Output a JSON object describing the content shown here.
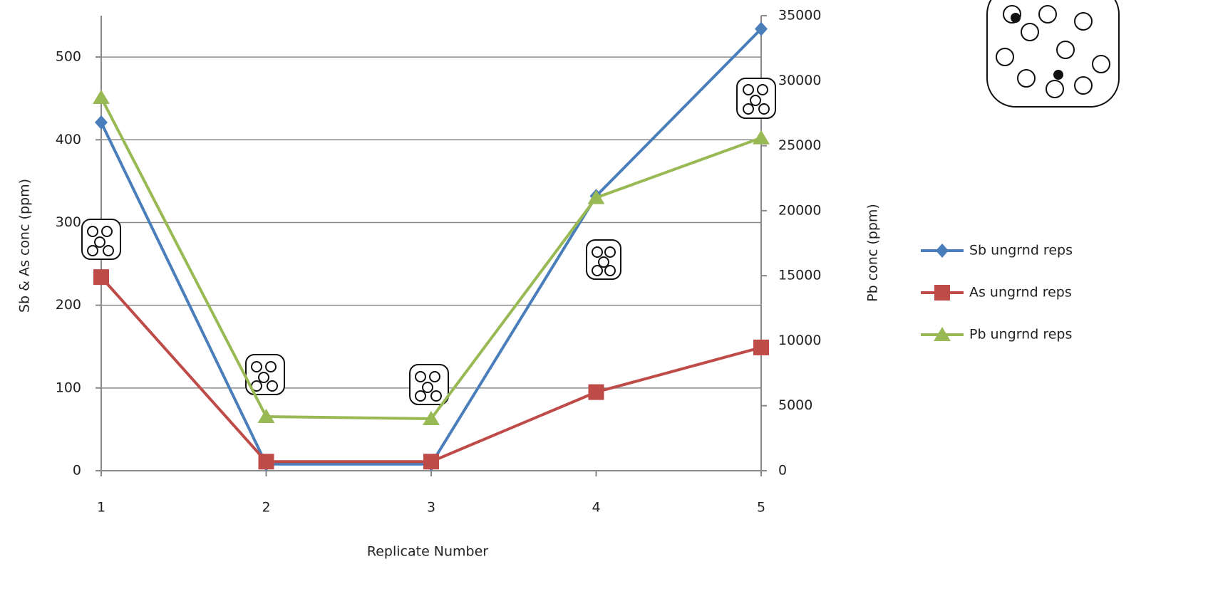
{
  "chart_data": {
    "type": "line",
    "x": [
      1,
      2,
      3,
      4,
      5
    ],
    "xlim": [
      1,
      5
    ],
    "xticks": [
      1,
      2,
      3,
      4,
      5
    ],
    "x_label": "Replicate Number",
    "y_label": "Sb & As conc (ppm)",
    "ylim": [
      0,
      550
    ],
    "yticks": [
      0,
      100,
      200,
      300,
      400,
      500
    ],
    "y2_label": "Pb conc (ppm)",
    "y2lim": [
      0,
      35000
    ],
    "y2ticks": [
      0,
      5000,
      10000,
      15000,
      20000,
      25000,
      30000,
      35000
    ],
    "grid": true,
    "legend": "right",
    "series": [
      {
        "name": "Sb ungrnd reps",
        "color": "#4a7ebb",
        "marker": "diamond",
        "values": [
          421,
          8,
          8,
          332,
          534
        ]
      },
      {
        "name": "As ungrnd reps",
        "color": "#be4b48",
        "marker": "square",
        "values": [
          234,
          11,
          11,
          95,
          149
        ]
      },
      {
        "name": "Pb ungrnd reps",
        "color": "#98b954",
        "marker": "triangle",
        "axis": "y2",
        "values": [
          28700,
          4160,
          4000,
          21000,
          25600
        ]
      }
    ]
  }
}
